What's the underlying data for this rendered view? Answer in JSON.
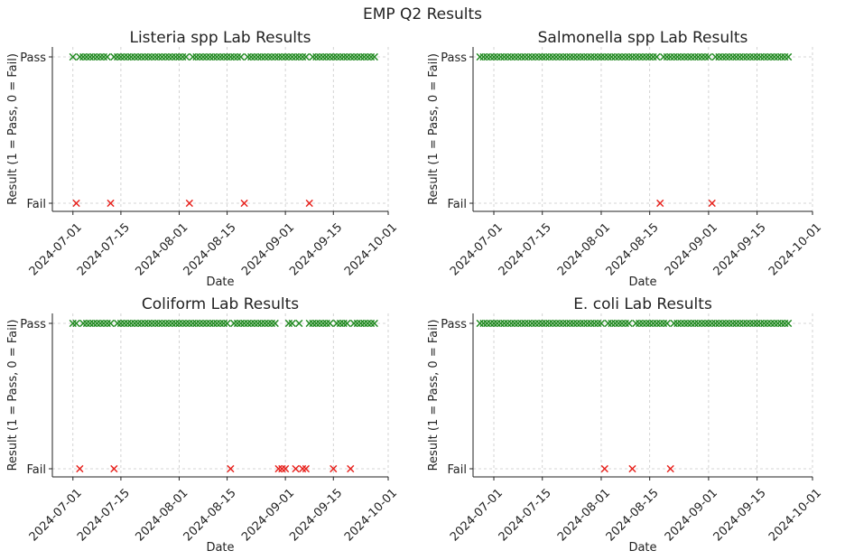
{
  "figure": {
    "title": "EMP Q2 Results"
  },
  "colors": {
    "pass": "#228B22",
    "fail": "#E8231E"
  },
  "chart_data": [
    {
      "type": "scatter",
      "title": "Listeria spp Lab Results",
      "xlabel": "Date",
      "ylabel": "Result (1 = Pass, 0 = Fail)",
      "x_ticks": [
        "2024-07-01",
        "2024-07-15",
        "2024-08-01",
        "2024-08-15",
        "2024-09-01",
        "2024-09-15",
        "2024-10-01"
      ],
      "y_ticks": [
        {
          "value": 1,
          "label": "Pass"
        },
        {
          "value": 0,
          "label": "Fail"
        }
      ],
      "xlim": [
        "2024-06-25",
        "2024-10-01"
      ],
      "grid": true,
      "marker": "x",
      "pass_range": [
        "2024-07-01",
        "2024-09-27"
      ],
      "fail_dates": [
        "2024-07-02",
        "2024-07-12",
        "2024-08-04",
        "2024-08-20",
        "2024-09-08"
      ]
    },
    {
      "type": "scatter",
      "title": "Salmonella spp Lab Results",
      "xlabel": "Date",
      "ylabel": "Result (1 = Pass, 0 = Fail)",
      "x_ticks": [
        "2024-07-01",
        "2024-07-15",
        "2024-08-01",
        "2024-08-15",
        "2024-09-01",
        "2024-09-15",
        "2024-10-01"
      ],
      "y_ticks": [
        {
          "value": 1,
          "label": "Pass"
        },
        {
          "value": 0,
          "label": "Fail"
        }
      ],
      "xlim": [
        "2024-06-25",
        "2024-10-01"
      ],
      "grid": true,
      "marker": "x",
      "pass_range": [
        "2024-06-27",
        "2024-09-24"
      ],
      "fail_dates": [
        "2024-08-18",
        "2024-09-02"
      ]
    },
    {
      "type": "scatter",
      "title": "Coliform Lab Results",
      "xlabel": "Date",
      "ylabel": "Result (1 = Pass, 0 = Fail)",
      "x_ticks": [
        "2024-07-01",
        "2024-07-15",
        "2024-08-01",
        "2024-08-15",
        "2024-09-01",
        "2024-09-15",
        "2024-10-01"
      ],
      "y_ticks": [
        {
          "value": 1,
          "label": "Pass"
        },
        {
          "value": 0,
          "label": "Fail"
        }
      ],
      "xlim": [
        "2024-06-25",
        "2024-10-01"
      ],
      "grid": true,
      "marker": "x",
      "pass_range": [
        "2024-07-01",
        "2024-09-27"
      ],
      "fail_dates": [
        "2024-07-03",
        "2024-07-13",
        "2024-08-16",
        "2024-08-30",
        "2024-08-31",
        "2024-09-01",
        "2024-09-04",
        "2024-09-06",
        "2024-09-07",
        "2024-09-15",
        "2024-09-20"
      ]
    },
    {
      "type": "scatter",
      "title": "E. coli Lab Results",
      "xlabel": "Date",
      "ylabel": "Result (1 = Pass, 0 = Fail)",
      "x_ticks": [
        "2024-07-01",
        "2024-07-15",
        "2024-08-01",
        "2024-08-15",
        "2024-09-01",
        "2024-09-15",
        "2024-10-01"
      ],
      "y_ticks": [
        {
          "value": 1,
          "label": "Pass"
        },
        {
          "value": 0,
          "label": "Fail"
        }
      ],
      "xlim": [
        "2024-06-25",
        "2024-10-01"
      ],
      "grid": true,
      "marker": "x",
      "pass_range": [
        "2024-06-27",
        "2024-09-24"
      ],
      "fail_dates": [
        "2024-08-02",
        "2024-08-10",
        "2024-08-21"
      ]
    }
  ]
}
